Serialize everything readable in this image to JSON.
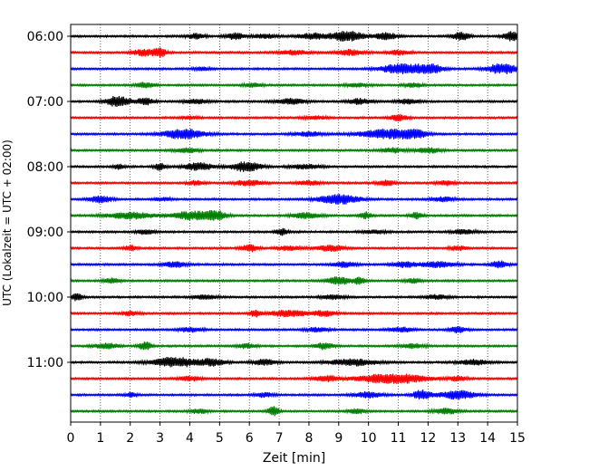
{
  "chart_data": {
    "type": "line",
    "title": "",
    "xlabel": "Zeit  [min]",
    "ylabel": "UTC (Lokalzeit = UTC + 02:00)",
    "xlim": [
      0,
      15
    ],
    "x_ticks": [
      0,
      1,
      2,
      3,
      4,
      5,
      6,
      7,
      8,
      9,
      10,
      11,
      12,
      13,
      14,
      15
    ],
    "x_tick_labels": [
      "0",
      "1",
      "2",
      "3",
      "4",
      "5",
      "6",
      "7",
      "8",
      "9",
      "10",
      "11",
      "12",
      "13",
      "14",
      "15"
    ],
    "y_tick_labels": [
      "06:00",
      "07:00",
      "08:00",
      "09:00",
      "10:00",
      "11:00"
    ],
    "grid": "vertical dotted",
    "trace_interval_min": 15,
    "trace_colors": [
      "#000000",
      "#ff0000",
      "#0000ff",
      "#008000"
    ],
    "traces": [
      {
        "start": "06:00",
        "bursts": [
          [
            4.2,
            0.3,
            0.5
          ],
          [
            5.5,
            0.3,
            0.6
          ],
          [
            6.5,
            0.4,
            0.4
          ],
          [
            8.1,
            0.5,
            0.5
          ],
          [
            9.3,
            0.6,
            0.9
          ],
          [
            10.6,
            0.4,
            0.6
          ],
          [
            13.1,
            0.3,
            0.7
          ],
          [
            14.8,
            0.3,
            0.8
          ]
        ]
      },
      {
        "start": "06:15",
        "bursts": [
          [
            2.5,
            0.4,
            0.6
          ],
          [
            3.0,
            0.2,
            0.9
          ],
          [
            7.5,
            0.5,
            0.4
          ],
          [
            9.4,
            0.5,
            0.5
          ],
          [
            11.0,
            0.4,
            0.4
          ]
        ]
      },
      {
        "start": "06:30",
        "bursts": [
          [
            4.4,
            0.3,
            0.3
          ],
          [
            10.9,
            0.6,
            0.7
          ],
          [
            11.4,
            0.3,
            1.0
          ],
          [
            12.1,
            0.4,
            0.9
          ],
          [
            14.5,
            0.5,
            1.0
          ]
        ]
      },
      {
        "start": "06:45",
        "bursts": [
          [
            2.5,
            0.3,
            0.5
          ],
          [
            6.1,
            0.3,
            0.4
          ],
          [
            9.6,
            0.4,
            0.3
          ],
          [
            11.5,
            0.3,
            0.4
          ]
        ]
      },
      {
        "start": "07:00",
        "bursts": [
          [
            1.6,
            0.4,
            1.0
          ],
          [
            2.5,
            0.3,
            0.6
          ],
          [
            4.2,
            0.4,
            0.4
          ],
          [
            7.4,
            0.5,
            0.5
          ],
          [
            9.7,
            0.4,
            0.5
          ],
          [
            11.3,
            0.4,
            0.4
          ]
        ]
      },
      {
        "start": "07:15",
        "bursts": [
          [
            4.0,
            0.3,
            0.3
          ],
          [
            8.2,
            0.4,
            0.3
          ],
          [
            11.0,
            0.3,
            0.6
          ]
        ]
      },
      {
        "start": "07:30",
        "bursts": [
          [
            3.8,
            0.7,
            0.9
          ],
          [
            8.0,
            0.5,
            0.4
          ],
          [
            10.6,
            0.9,
            0.9
          ],
          [
            11.5,
            0.4,
            1.0
          ]
        ]
      },
      {
        "start": "07:45",
        "bursts": [
          [
            3.9,
            0.4,
            0.4
          ],
          [
            10.8,
            0.4,
            0.4
          ],
          [
            12.0,
            0.4,
            0.5
          ]
        ]
      },
      {
        "start": "08:00",
        "bursts": [
          [
            1.6,
            0.2,
            0.4
          ],
          [
            3.0,
            0.2,
            0.6
          ],
          [
            4.3,
            0.5,
            0.7
          ],
          [
            5.9,
            0.5,
            0.9
          ],
          [
            7.9,
            0.5,
            0.4
          ]
        ]
      },
      {
        "start": "08:15",
        "bursts": [
          [
            4.2,
            0.3,
            0.4
          ],
          [
            6.0,
            0.5,
            0.5
          ],
          [
            8.0,
            0.4,
            0.4
          ],
          [
            10.6,
            0.3,
            0.5
          ],
          [
            12.6,
            0.3,
            0.4
          ]
        ]
      },
      {
        "start": "08:30",
        "bursts": [
          [
            1.0,
            0.4,
            0.6
          ],
          [
            3.1,
            0.3,
            0.3
          ],
          [
            9.0,
            0.7,
            0.9
          ],
          [
            12.5,
            0.4,
            0.4
          ]
        ]
      },
      {
        "start": "08:45",
        "bursts": [
          [
            2.0,
            0.8,
            0.6
          ],
          [
            4.0,
            0.6,
            0.7
          ],
          [
            4.8,
            0.4,
            1.0
          ],
          [
            7.9,
            0.5,
            0.5
          ],
          [
            9.9,
            0.2,
            0.6
          ],
          [
            11.6,
            0.2,
            0.6
          ]
        ]
      },
      {
        "start": "09:00",
        "bursts": [
          [
            2.5,
            0.3,
            0.4
          ],
          [
            7.1,
            0.2,
            0.6
          ],
          [
            10.2,
            0.4,
            0.3
          ],
          [
            13.2,
            0.4,
            0.4
          ]
        ]
      },
      {
        "start": "09:15",
        "bursts": [
          [
            2.0,
            0.2,
            0.5
          ],
          [
            6.0,
            0.3,
            0.6
          ],
          [
            7.3,
            0.4,
            0.4
          ],
          [
            8.7,
            0.5,
            0.5
          ],
          [
            13.0,
            0.3,
            0.4
          ]
        ]
      },
      {
        "start": "09:30",
        "bursts": [
          [
            3.5,
            0.4,
            0.5
          ],
          [
            9.2,
            0.4,
            0.5
          ],
          [
            11.2,
            0.4,
            0.5
          ],
          [
            12.3,
            0.6,
            0.5
          ],
          [
            14.4,
            0.3,
            0.6
          ]
        ]
      },
      {
        "start": "09:45",
        "bursts": [
          [
            1.4,
            0.3,
            0.4
          ],
          [
            9.0,
            0.4,
            0.7
          ],
          [
            9.7,
            0.2,
            0.6
          ],
          [
            11.5,
            0.3,
            0.4
          ]
        ]
      },
      {
        "start": "10:00",
        "bursts": [
          [
            0.2,
            0.2,
            0.6
          ],
          [
            4.5,
            0.4,
            0.4
          ],
          [
            8.8,
            0.4,
            0.4
          ],
          [
            12.3,
            0.4,
            0.4
          ]
        ]
      },
      {
        "start": "10:15",
        "bursts": [
          [
            2.0,
            0.3,
            0.4
          ],
          [
            6.2,
            0.2,
            0.6
          ],
          [
            7.3,
            0.6,
            0.6
          ],
          [
            8.5,
            0.4,
            0.5
          ]
        ]
      },
      {
        "start": "10:30",
        "bursts": [
          [
            4.0,
            0.4,
            0.4
          ],
          [
            8.3,
            0.4,
            0.4
          ],
          [
            11.1,
            0.4,
            0.4
          ],
          [
            13.0,
            0.3,
            0.5
          ]
        ]
      },
      {
        "start": "10:45",
        "bursts": [
          [
            1.2,
            0.4,
            0.5
          ],
          [
            2.5,
            0.2,
            0.8
          ],
          [
            5.9,
            0.3,
            0.4
          ],
          [
            8.5,
            0.3,
            0.6
          ],
          [
            11.5,
            0.4,
            0.4
          ]
        ]
      },
      {
        "start": "11:00",
        "bursts": [
          [
            3.5,
            0.8,
            0.9
          ],
          [
            4.8,
            0.4,
            0.6
          ],
          [
            6.5,
            0.4,
            0.5
          ],
          [
            9.5,
            0.8,
            0.6
          ],
          [
            13.5,
            0.5,
            0.5
          ]
        ]
      },
      {
        "start": "11:15",
        "bursts": [
          [
            4.0,
            0.4,
            0.4
          ],
          [
            8.6,
            0.4,
            0.5
          ],
          [
            10.8,
            1.2,
            0.9
          ],
          [
            13.0,
            0.3,
            0.4
          ]
        ]
      },
      {
        "start": "11:30",
        "bursts": [
          [
            2.0,
            0.2,
            0.4
          ],
          [
            6.5,
            0.3,
            0.4
          ],
          [
            10.0,
            0.5,
            0.5
          ],
          [
            11.8,
            0.3,
            0.9
          ],
          [
            13.0,
            0.6,
            0.8
          ]
        ]
      },
      {
        "start": "11:45",
        "bursts": [
          [
            4.3,
            0.3,
            0.4
          ],
          [
            6.8,
            0.2,
            0.8
          ],
          [
            9.6,
            0.3,
            0.4
          ],
          [
            12.6,
            0.4,
            0.5
          ]
        ]
      }
    ]
  }
}
